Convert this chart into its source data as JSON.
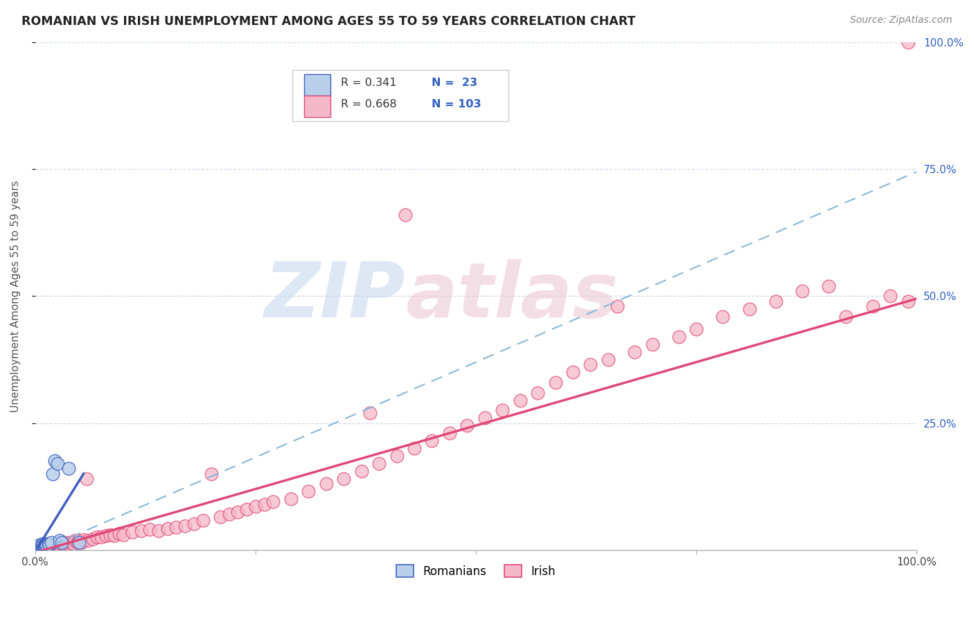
{
  "title": "ROMANIAN VS IRISH UNEMPLOYMENT AMONG AGES 55 TO 59 YEARS CORRELATION CHART",
  "source": "Source: ZipAtlas.com",
  "ylabel": "Unemployment Among Ages 55 to 59 years",
  "xlim": [
    0,
    1
  ],
  "ylim": [
    0,
    1
  ],
  "xtick_labels": [
    "0.0%",
    "",
    "",
    "",
    "100.0%"
  ],
  "ytick_labels_right": [
    "25.0%",
    "50.0%",
    "75.0%",
    "100.0%"
  ],
  "romanians_R": 0.341,
  "romanians_N": 23,
  "irish_R": 0.668,
  "irish_N": 103,
  "romanian_scatter_color": "#b8d0ea",
  "irish_scatter_color": "#f5b8c8",
  "romanian_line_color": "#4060c0",
  "irish_line_color": "#e04878",
  "dashed_line_color": "#88b8d8",
  "legend_color": "#3060c0",
  "romanians_x": [
    0.004,
    0.005,
    0.006,
    0.006,
    0.007,
    0.008,
    0.008,
    0.009,
    0.01,
    0.01,
    0.011,
    0.012,
    0.013,
    0.015,
    0.016,
    0.018,
    0.02,
    0.022,
    0.025,
    0.028,
    0.03,
    0.038,
    0.05
  ],
  "romanians_y": [
    0.008,
    0.006,
    0.006,
    0.01,
    0.008,
    0.008,
    0.01,
    0.012,
    0.008,
    0.01,
    0.01,
    0.012,
    0.01,
    0.012,
    0.01,
    0.015,
    0.15,
    0.175,
    0.17,
    0.018,
    0.015,
    0.16,
    0.015
  ],
  "irish_x": [
    0.003,
    0.004,
    0.005,
    0.005,
    0.006,
    0.006,
    0.007,
    0.007,
    0.008,
    0.008,
    0.009,
    0.009,
    0.01,
    0.01,
    0.011,
    0.012,
    0.013,
    0.013,
    0.014,
    0.015,
    0.015,
    0.016,
    0.017,
    0.018,
    0.019,
    0.02,
    0.022,
    0.025,
    0.028,
    0.03,
    0.033,
    0.035,
    0.038,
    0.04,
    0.043,
    0.045,
    0.048,
    0.05,
    0.053,
    0.055,
    0.058,
    0.06,
    0.065,
    0.07,
    0.075,
    0.08,
    0.085,
    0.09,
    0.095,
    0.1,
    0.11,
    0.12,
    0.13,
    0.14,
    0.15,
    0.16,
    0.17,
    0.18,
    0.19,
    0.2,
    0.21,
    0.22,
    0.23,
    0.24,
    0.25,
    0.26,
    0.27,
    0.29,
    0.31,
    0.33,
    0.35,
    0.37,
    0.39,
    0.41,
    0.43,
    0.45,
    0.47,
    0.49,
    0.51,
    0.53,
    0.55,
    0.57,
    0.59,
    0.61,
    0.63,
    0.65,
    0.68,
    0.7,
    0.73,
    0.75,
    0.78,
    0.81,
    0.84,
    0.87,
    0.9,
    0.92,
    0.95,
    0.97,
    0.99,
    0.66,
    0.38,
    0.42,
    0.99
  ],
  "irish_y": [
    0.008,
    0.005,
    0.006,
    0.008,
    0.005,
    0.008,
    0.006,
    0.008,
    0.005,
    0.008,
    0.006,
    0.008,
    0.005,
    0.008,
    0.006,
    0.005,
    0.008,
    0.01,
    0.006,
    0.005,
    0.008,
    0.006,
    0.008,
    0.01,
    0.006,
    0.008,
    0.01,
    0.012,
    0.01,
    0.012,
    0.01,
    0.015,
    0.012,
    0.015,
    0.012,
    0.018,
    0.015,
    0.018,
    0.015,
    0.02,
    0.14,
    0.018,
    0.022,
    0.025,
    0.025,
    0.028,
    0.03,
    0.028,
    0.032,
    0.03,
    0.035,
    0.038,
    0.04,
    0.038,
    0.042,
    0.045,
    0.048,
    0.052,
    0.058,
    0.15,
    0.065,
    0.07,
    0.075,
    0.08,
    0.085,
    0.09,
    0.095,
    0.1,
    0.115,
    0.13,
    0.14,
    0.155,
    0.17,
    0.185,
    0.2,
    0.215,
    0.23,
    0.245,
    0.26,
    0.275,
    0.295,
    0.31,
    0.33,
    0.35,
    0.365,
    0.375,
    0.39,
    0.405,
    0.42,
    0.435,
    0.46,
    0.475,
    0.49,
    0.51,
    0.52,
    0.46,
    0.48,
    0.5,
    1.0,
    0.48,
    0.27,
    0.66,
    0.49
  ],
  "romanian_line_x": [
    0.004,
    0.05
  ],
  "romanian_line_y_start": 0.005,
  "romanian_line_slope": 2.8,
  "irish_line_slope": 0.5,
  "irish_line_intercept": -0.005,
  "dashed_line_slope": 0.75,
  "dashed_line_intercept": -0.005,
  "bg_color": "#ffffff",
  "grid_color": "#d0d8e8",
  "title_fontsize": 12.5,
  "source_fontsize": 10,
  "axis_label_fontsize": 11,
  "tick_fontsize": 11
}
